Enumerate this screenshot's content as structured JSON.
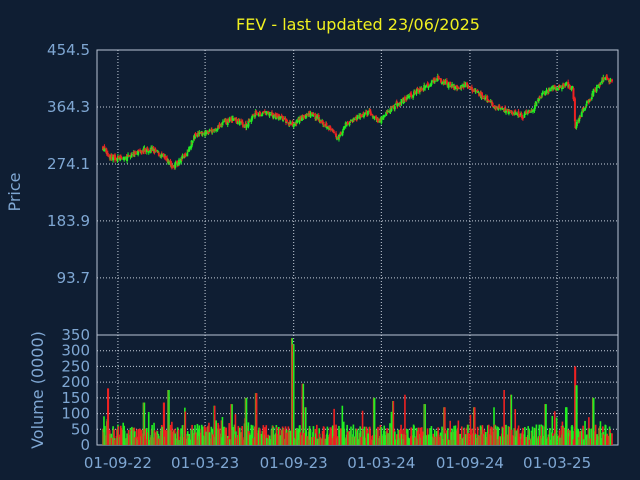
{
  "chart_data": [
    {
      "type": "candlestick",
      "title": "FEV - last updated 23/06/2025",
      "ylabel": "Price",
      "ylim": [
        3.3,
        454.5
      ],
      "yticks": [
        "454.5",
        "364.3",
        "274.1",
        "183.9",
        "93.7"
      ],
      "xticks": [
        "01-09-22",
        "01-03-23",
        "01-09-23",
        "01-03-24",
        "01-09-24",
        "01-03-25"
      ],
      "up_color": "#22ee22",
      "down_color": "#ee2222",
      "grid": true,
      "close_anchors": [
        [
          "2022-08-01",
          300
        ],
        [
          "2022-08-15",
          285
        ],
        [
          "2022-09-15",
          282
        ],
        [
          "2022-10-15",
          295
        ],
        [
          "2022-11-10",
          298
        ],
        [
          "2022-12-10",
          282
        ],
        [
          "2022-12-25",
          270
        ],
        [
          "2023-01-20",
          288
        ],
        [
          "2023-02-10",
          322
        ],
        [
          "2023-03-15",
          325
        ],
        [
          "2023-04-10",
          340
        ],
        [
          "2023-05-01",
          345
        ],
        [
          "2023-05-25",
          335
        ],
        [
          "2023-06-15",
          355
        ],
        [
          "2023-07-15",
          353
        ],
        [
          "2023-08-10",
          345
        ],
        [
          "2023-09-01",
          334
        ],
        [
          "2023-09-15",
          348
        ],
        [
          "2023-10-10",
          352
        ],
        [
          "2023-11-10",
          335
        ],
        [
          "2023-12-01",
          315
        ],
        [
          "2023-12-20",
          338
        ],
        [
          "2024-01-15",
          348
        ],
        [
          "2024-02-05",
          356
        ],
        [
          "2024-02-25",
          340
        ],
        [
          "2024-03-15",
          358
        ],
        [
          "2024-04-15",
          375
        ],
        [
          "2024-05-10",
          388
        ],
        [
          "2024-06-05",
          398
        ],
        [
          "2024-06-25",
          410
        ],
        [
          "2024-07-15",
          400
        ],
        [
          "2024-08-05",
          396
        ],
        [
          "2024-08-25",
          398
        ],
        [
          "2024-09-15",
          388
        ],
        [
          "2024-10-10",
          373
        ],
        [
          "2024-11-05",
          360
        ],
        [
          "2024-12-01",
          355
        ],
        [
          "2024-12-20",
          350
        ],
        [
          "2025-01-10",
          360
        ],
        [
          "2025-01-25",
          380
        ],
        [
          "2025-02-15",
          393
        ],
        [
          "2025-03-05",
          395
        ],
        [
          "2025-03-20",
          400
        ],
        [
          "2025-04-03",
          392
        ],
        [
          "2025-04-08",
          330
        ],
        [
          "2025-04-18",
          352
        ],
        [
          "2025-05-10",
          380
        ],
        [
          "2025-06-05",
          410
        ],
        [
          "2025-06-23",
          405
        ]
      ]
    },
    {
      "type": "bar",
      "ylabel": "Volume (0000)",
      "ylim": [
        0,
        350
      ],
      "yticks": [
        "350",
        "300",
        "250",
        "200",
        "150",
        "100",
        "50",
        "0"
      ],
      "baseline": 45,
      "spikes": [
        [
          "2022-08-12",
          180
        ],
        [
          "2022-10-25",
          135
        ],
        [
          "2022-12-05",
          135
        ],
        [
          "2022-12-15",
          175
        ],
        [
          "2023-03-20",
          125
        ],
        [
          "2023-04-25",
          130
        ],
        [
          "2023-05-25",
          150
        ],
        [
          "2023-06-15",
          165
        ],
        [
          "2023-08-28",
          340
        ],
        [
          "2023-08-31",
          320
        ],
        [
          "2023-09-20",
          195
        ],
        [
          "2023-09-25",
          120
        ],
        [
          "2023-11-25",
          115
        ],
        [
          "2023-12-10",
          125
        ],
        [
          "2024-02-15",
          150
        ],
        [
          "2024-03-25",
          140
        ],
        [
          "2024-04-20",
          160
        ],
        [
          "2024-05-30",
          130
        ],
        [
          "2024-07-10",
          120
        ],
        [
          "2024-09-10",
          120
        ],
        [
          "2024-10-20",
          120
        ],
        [
          "2024-11-10",
          175
        ],
        [
          "2024-11-25",
          160
        ],
        [
          "2025-02-05",
          130
        ],
        [
          "2025-03-20",
          120
        ],
        [
          "2025-04-07",
          250
        ],
        [
          "2025-04-10",
          190
        ],
        [
          "2025-05-15",
          150
        ]
      ]
    }
  ]
}
